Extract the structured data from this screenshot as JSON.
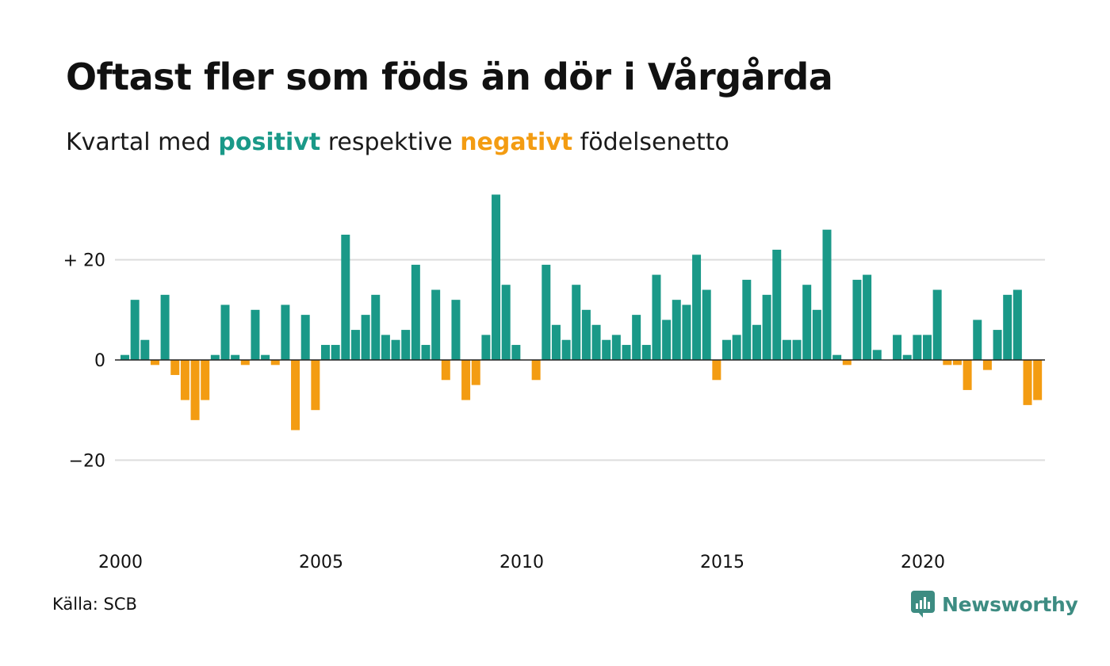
{
  "header": {
    "title": "Oftast fler som föds än dör i Vårgårda",
    "subtitle_part1": "Kvartal med ",
    "subtitle_positive": "positivt",
    "subtitle_part2": " respektive ",
    "subtitle_negative": "negativt",
    "subtitle_part3": " födelsenetto"
  },
  "footer": {
    "source": "Källa: SCB",
    "brand": "Newsworthy"
  },
  "colors": {
    "positive": "#1a9988",
    "negative": "#f39c12",
    "brand": "#3d8c82",
    "grid": "#dddddd"
  },
  "chart_data": {
    "type": "bar",
    "x_start": "2000 Q1",
    "x_ticks": [
      "2000",
      "2005",
      "2010",
      "2015",
      "2020"
    ],
    "y_ticks": [
      "+ 20",
      "0",
      "−20"
    ],
    "y_tick_values": [
      20,
      0,
      -20
    ],
    "ylim": [
      -37,
      37
    ],
    "grid": true,
    "values": [
      1,
      12,
      4,
      -1,
      13,
      -3,
      -8,
      -12,
      -8,
      1,
      11,
      1,
      -1,
      10,
      1,
      -1,
      11,
      -14,
      9,
      -10,
      3,
      3,
      25,
      6,
      9,
      13,
      5,
      4,
      6,
      19,
      3,
      14,
      -4,
      12,
      -8,
      -5,
      5,
      33,
      15,
      3,
      0,
      -4,
      19,
      7,
      4,
      15,
      10,
      7,
      4,
      5,
      3,
      9,
      3,
      17,
      8,
      12,
      11,
      21,
      14,
      -4,
      4,
      5,
      16,
      7,
      13,
      22,
      4,
      4,
      15,
      10,
      26,
      1,
      -1,
      16,
      17,
      2,
      0,
      5,
      1,
      5,
      5,
      14,
      -1,
      -1,
      -6,
      8,
      -2,
      6,
      13,
      14,
      -9,
      -8
    ]
  }
}
